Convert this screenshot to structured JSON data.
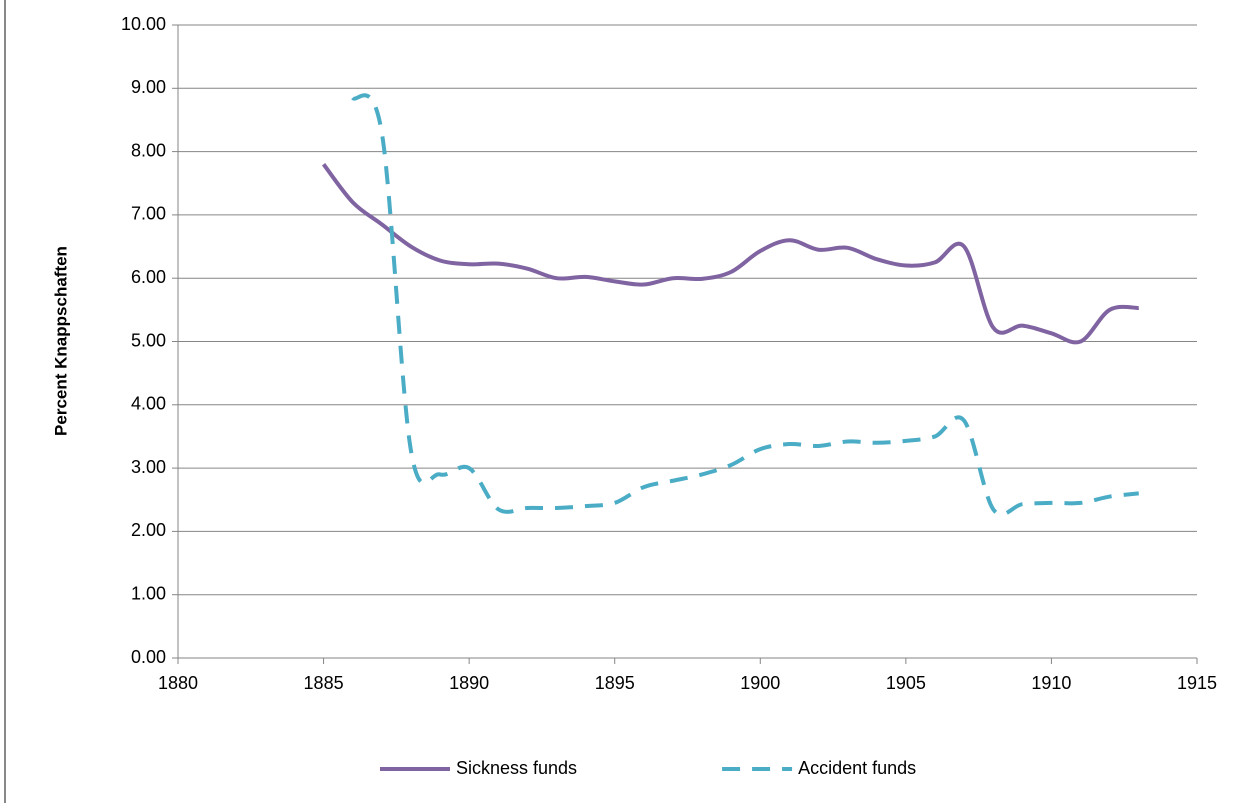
{
  "chart_data": {
    "type": "line",
    "y_label": "Percent  Knappschaften",
    "x": [
      1885,
      1886,
      1887,
      1888,
      1889,
      1890,
      1891,
      1892,
      1893,
      1894,
      1895,
      1896,
      1897,
      1898,
      1899,
      1900,
      1901,
      1902,
      1903,
      1904,
      1905,
      1906,
      1907,
      1908,
      1909,
      1910,
      1911,
      1912,
      1913
    ],
    "series": [
      {
        "name": "Sickness funds",
        "color": "#8064a2",
        "line_style": "solid",
        "values": [
          7.8,
          7.2,
          6.85,
          6.5,
          6.28,
          6.22,
          6.23,
          6.15,
          6.0,
          6.02,
          5.95,
          5.9,
          6.0,
          5.99,
          6.1,
          6.43,
          6.6,
          6.45,
          6.48,
          6.3,
          6.2,
          6.25,
          6.5,
          5.22,
          5.25,
          5.13,
          5.0,
          5.5,
          5.53
        ]
      },
      {
        "name": "Accident funds",
        "color": "#4bacc6",
        "line_style": "dashed",
        "values": [
          null,
          8.85,
          8.3,
          3.28,
          2.9,
          3.0,
          2.35,
          2.37,
          2.37,
          2.4,
          2.45,
          2.7,
          2.8,
          2.9,
          3.05,
          3.3,
          3.38,
          3.35,
          3.42,
          3.4,
          3.43,
          3.5,
          3.75,
          2.35,
          2.43,
          2.45,
          2.45,
          2.55,
          2.6
        ]
      }
    ],
    "xlim": [
      1880,
      1915
    ],
    "xticks": [
      1880,
      1885,
      1890,
      1895,
      1900,
      1905,
      1910,
      1915
    ],
    "ylim": [
      0,
      10
    ],
    "yticks": [
      {
        "value": 0,
        "label": "0.00"
      },
      {
        "value": 1,
        "label": "1.00"
      },
      {
        "value": 2,
        "label": "2.00"
      },
      {
        "value": 3,
        "label": "3.00"
      },
      {
        "value": 4,
        "label": "4.00"
      },
      {
        "value": 5,
        "label": "5.00"
      },
      {
        "value": 6,
        "label": "6.00"
      },
      {
        "value": 7,
        "label": "7.00"
      },
      {
        "value": 8,
        "label": "8.00"
      },
      {
        "value": 9,
        "label": "9.00"
      },
      {
        "value": 10,
        "label": "10.00"
      }
    ],
    "grid": true,
    "legend": "bottom"
  }
}
